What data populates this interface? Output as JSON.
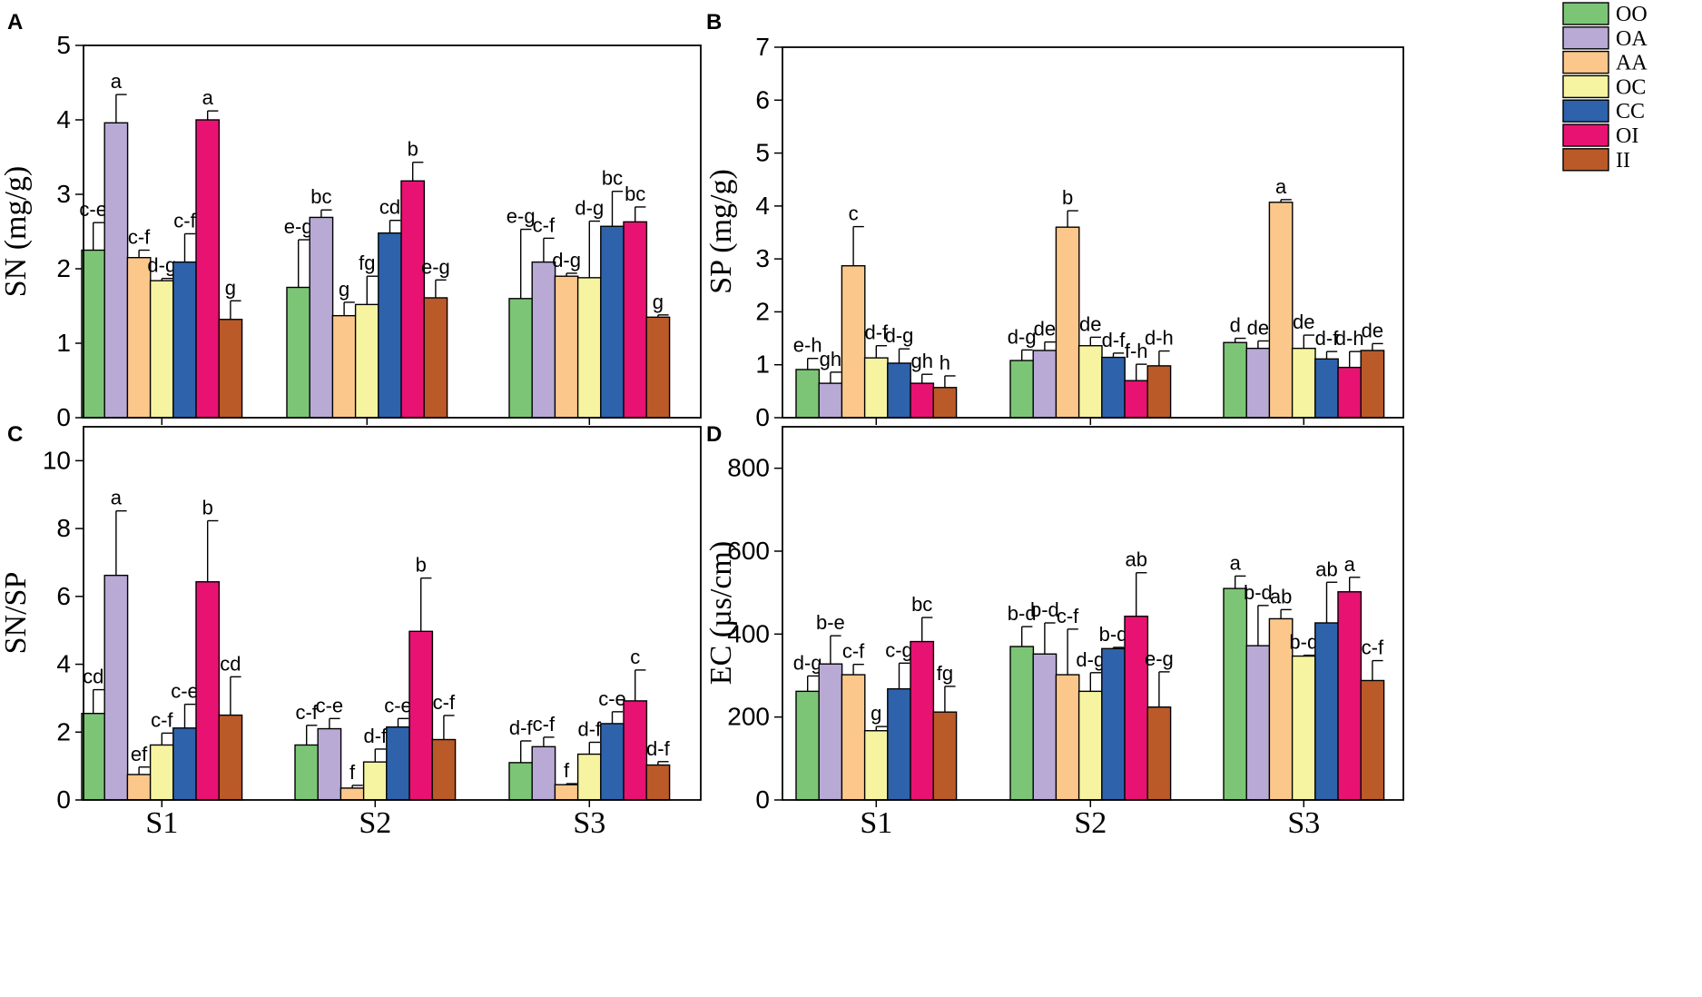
{
  "chart_data": [
    {
      "panel": "A",
      "type": "bar",
      "ylabel": "SN (mg/g)",
      "ylim": [
        0,
        5
      ],
      "yticks": [
        0,
        1,
        2,
        3,
        4,
        5
      ],
      "yticks_text": [
        "0",
        "1",
        "2",
        "3",
        "4",
        "5"
      ],
      "categories": [
        "S1",
        "S2",
        "S3"
      ],
      "series": [
        {
          "name": "OO",
          "values": [
            2.25,
            1.75,
            1.6
          ],
          "errors": [
            0.37,
            0.64,
            0.93
          ],
          "labels": [
            "c-e",
            "e-g",
            "e-g"
          ]
        },
        {
          "name": "OA",
          "values": [
            3.96,
            2.69,
            2.09
          ],
          "errors": [
            0.38,
            0.1,
            0.32
          ],
          "labels": [
            "a",
            "bc",
            "c-f"
          ]
        },
        {
          "name": "AA",
          "values": [
            2.15,
            1.37,
            1.9
          ],
          "errors": [
            0.1,
            0.18,
            0.04
          ],
          "labels": [
            "c-f",
            "g",
            "d-g"
          ]
        },
        {
          "name": "OC",
          "values": [
            1.84,
            1.52,
            1.88
          ],
          "errors": [
            0.03,
            0.38,
            0.76
          ],
          "labels": [
            "d-g",
            "fg",
            "d-g"
          ]
        },
        {
          "name": "CC",
          "values": [
            2.09,
            2.48,
            2.57
          ],
          "errors": [
            0.38,
            0.17,
            0.47
          ],
          "labels": [
            "c-f",
            "cd",
            "bc"
          ]
        },
        {
          "name": "OI",
          "values": [
            4.0,
            3.18,
            2.63
          ],
          "errors": [
            0.12,
            0.25,
            0.2
          ],
          "labels": [
            "a",
            "b",
            "bc"
          ]
        },
        {
          "name": "II",
          "values": [
            1.32,
            1.61,
            1.35
          ],
          "errors": [
            0.25,
            0.24,
            0.03
          ],
          "labels": [
            "g",
            "e-g",
            "g"
          ]
        }
      ]
    },
    {
      "panel": "B",
      "type": "bar",
      "ylabel": "SP (mg/g)",
      "ylim": [
        0,
        7
      ],
      "yticks": [
        0,
        1,
        2,
        3,
        4,
        5,
        6,
        7
      ],
      "yticks_text": [
        "0",
        "1",
        "2",
        "3",
        "4",
        "5",
        "6",
        "7"
      ],
      "categories": [
        "S1",
        "S2",
        "S3"
      ],
      "series": [
        {
          "name": "OO",
          "values": [
            0.91,
            1.08,
            1.42
          ],
          "errors": [
            0.21,
            0.2,
            0.08
          ],
          "labels": [
            "e-h",
            "d-g",
            "d"
          ]
        },
        {
          "name": "OA",
          "values": [
            0.65,
            1.27,
            1.31
          ],
          "errors": [
            0.21,
            0.16,
            0.14
          ],
          "labels": [
            "gh",
            "de",
            "de"
          ]
        },
        {
          "name": "AA",
          "values": [
            2.87,
            3.6,
            4.07
          ],
          "errors": [
            0.74,
            0.31,
            0.05
          ],
          "labels": [
            "c",
            "b",
            "a"
          ]
        },
        {
          "name": "OC",
          "values": [
            1.13,
            1.36,
            1.31
          ],
          "errors": [
            0.23,
            0.16,
            0.25
          ],
          "labels": [
            "d-f",
            "de",
            "de"
          ]
        },
        {
          "name": "CC",
          "values": [
            1.03,
            1.14,
            1.11
          ],
          "errors": [
            0.27,
            0.08,
            0.14
          ],
          "labels": [
            "d-g",
            "d-f",
            "d-f"
          ]
        },
        {
          "name": "OI",
          "values": [
            0.65,
            0.7,
            0.95
          ],
          "errors": [
            0.17,
            0.31,
            0.3
          ],
          "labels": [
            "gh",
            "f-h",
            "d-h"
          ]
        },
        {
          "name": "II",
          "values": [
            0.57,
            0.98,
            1.27
          ],
          "errors": [
            0.22,
            0.28,
            0.13
          ],
          "labels": [
            "h",
            "d-h",
            "de"
          ]
        }
      ]
    },
    {
      "panel": "C",
      "type": "bar",
      "ylabel": "SN/SP",
      "ylim": [
        0,
        11
      ],
      "yticks": [
        0,
        2,
        4,
        6,
        8,
        10
      ],
      "yticks_text": [
        "0",
        "2",
        "4",
        "6",
        "8",
        "10"
      ],
      "categories": [
        "S1",
        "S2",
        "S3"
      ],
      "series": [
        {
          "name": "OO",
          "values": [
            2.55,
            1.62,
            1.1
          ],
          "errors": [
            0.7,
            0.58,
            0.64
          ],
          "labels": [
            "cd",
            "c-f",
            "d-f"
          ]
        },
        {
          "name": "OA",
          "values": [
            6.62,
            2.1,
            1.57
          ],
          "errors": [
            1.9,
            0.3,
            0.28
          ],
          "labels": [
            "a",
            "c-e",
            "c-f"
          ]
        },
        {
          "name": "AA",
          "values": [
            0.75,
            0.35,
            0.45
          ],
          "errors": [
            0.22,
            0.08,
            0.03
          ],
          "labels": [
            "ef",
            "f",
            "f"
          ]
        },
        {
          "name": "OC",
          "values": [
            1.62,
            1.12,
            1.35
          ],
          "errors": [
            0.35,
            0.38,
            0.35
          ],
          "labels": [
            "c-f",
            "d-f",
            "d-f"
          ]
        },
        {
          "name": "CC",
          "values": [
            2.12,
            2.15,
            2.25
          ],
          "errors": [
            0.7,
            0.25,
            0.35
          ],
          "labels": [
            "c-e",
            "c-e",
            "c-e"
          ]
        },
        {
          "name": "OI",
          "values": [
            6.43,
            4.97,
            2.92
          ],
          "errors": [
            1.8,
            1.57,
            0.91
          ],
          "labels": [
            "b",
            "b",
            "c"
          ]
        },
        {
          "name": "II",
          "values": [
            2.5,
            1.78,
            1.03
          ],
          "errors": [
            1.13,
            0.71,
            0.1
          ],
          "labels": [
            "cd",
            "c-f",
            "d-f"
          ]
        }
      ]
    },
    {
      "panel": "D",
      "type": "bar",
      "ylabel": "EC (µs/cm)",
      "ylim": [
        0,
        900
      ],
      "yticks": [
        0,
        200,
        400,
        600,
        800
      ],
      "yticks_text": [
        "0",
        "200",
        "400",
        "600",
        "800"
      ],
      "categories": [
        "S1",
        "S2",
        "S3"
      ],
      "series": [
        {
          "name": "OO",
          "values": [
            262,
            370,
            510
          ],
          "errors": [
            37,
            48,
            30
          ],
          "labels": [
            "d-g",
            "b-d",
            "a"
          ]
        },
        {
          "name": "OA",
          "values": [
            328,
            352,
            372
          ],
          "errors": [
            68,
            75,
            97
          ],
          "labels": [
            "b-e",
            "b-d",
            "b-d"
          ]
        },
        {
          "name": "AA",
          "values": [
            302,
            302,
            437
          ],
          "errors": [
            25,
            110,
            22
          ],
          "labels": [
            "c-f",
            "c-f",
            "ab"
          ]
        },
        {
          "name": "OC",
          "values": [
            167,
            262,
            347
          ],
          "errors": [
            10,
            45,
            2
          ],
          "labels": [
            "g",
            "d-g",
            "b-d"
          ]
        },
        {
          "name": "CC",
          "values": [
            268,
            365,
            427
          ],
          "errors": [
            62,
            3,
            98
          ],
          "labels": [
            "c-g",
            "b-d",
            "ab"
          ]
        },
        {
          "name": "OI",
          "values": [
            382,
            443,
            502
          ],
          "errors": [
            58,
            105,
            35
          ],
          "labels": [
            "bc",
            "ab",
            "a"
          ]
        },
        {
          "name": "II",
          "values": [
            212,
            224,
            288
          ],
          "errors": [
            62,
            85,
            48
          ],
          "labels": [
            "fg",
            "e-g",
            "c-f"
          ]
        }
      ]
    }
  ],
  "legend": [
    {
      "name": "OO",
      "color": "#7dc576"
    },
    {
      "name": "OA",
      "color": "#b8aad5"
    },
    {
      "name": "AA",
      "color": "#fcc78b"
    },
    {
      "name": "OC",
      "color": "#f6f4a1"
    },
    {
      "name": "CC",
      "color": "#2e62ab"
    },
    {
      "name": "OI",
      "color": "#e81272"
    },
    {
      "name": "II",
      "color": "#ba5a28"
    }
  ]
}
